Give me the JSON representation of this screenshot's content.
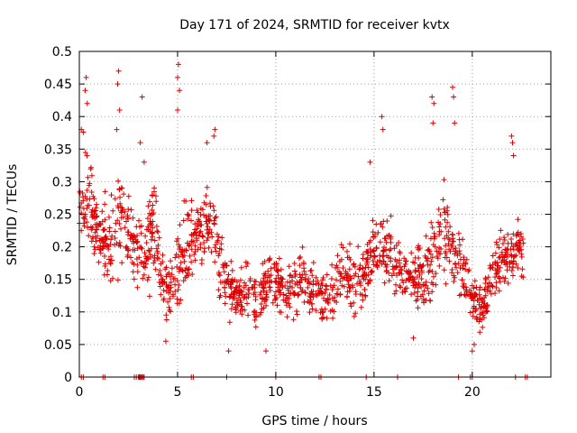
{
  "chart_data": {
    "type": "scatter",
    "title": "Day 171 of 2024, SRMTID for receiver kvtx",
    "xlabel": "GPS time / hours",
    "ylabel": "SRMTID / TECUs",
    "xlim": [
      0,
      24
    ],
    "ylim": [
      0,
      0.5
    ],
    "x_ticks": [
      0,
      5,
      10,
      15,
      20
    ],
    "y_ticks": [
      0,
      0.05,
      0.1,
      0.15,
      0.2,
      0.25,
      0.3,
      0.35,
      0.4,
      0.45,
      0.5
    ],
    "x_tick_labels": [
      "0",
      "5",
      "10",
      "15",
      "20"
    ],
    "y_tick_labels": [
      "0",
      "0.05",
      "0.1",
      "0.15",
      "0.2",
      "0.25",
      "0.3",
      "0.35",
      "0.4",
      "0.45",
      "0.5"
    ],
    "grid": true,
    "marker": "+",
    "color": "#dd0000",
    "series": [
      {
        "name": "SRMTID",
        "envelope_x": [
          0,
          0.3,
          0.6,
          1.0,
          1.5,
          2.0,
          2.5,
          3.0,
          3.4,
          3.8,
          4.2,
          4.6,
          5.0,
          5.5,
          6.0,
          6.5,
          7.0,
          7.5,
          8.0,
          8.5,
          9.0,
          9.5,
          10.0,
          10.5,
          11.0,
          11.5,
          12.0,
          12.5,
          13.0,
          13.5,
          14.0,
          14.5,
          15.0,
          15.5,
          16.0,
          16.5,
          17.0,
          17.5,
          18.0,
          18.5,
          19.0,
          19.5,
          20.0,
          20.5,
          21.0,
          21.5,
          22.0,
          22.5
        ],
        "envelope_mid": [
          0.27,
          0.3,
          0.25,
          0.22,
          0.2,
          0.26,
          0.22,
          0.2,
          0.18,
          0.24,
          0.16,
          0.13,
          0.17,
          0.2,
          0.22,
          0.24,
          0.2,
          0.14,
          0.12,
          0.13,
          0.11,
          0.14,
          0.15,
          0.13,
          0.14,
          0.16,
          0.13,
          0.12,
          0.14,
          0.16,
          0.13,
          0.16,
          0.19,
          0.2,
          0.17,
          0.15,
          0.16,
          0.14,
          0.19,
          0.22,
          0.2,
          0.17,
          0.12,
          0.11,
          0.15,
          0.18,
          0.19,
          0.2
        ],
        "envelope_spread": [
          0.09,
          0.1,
          0.08,
          0.07,
          0.07,
          0.1,
          0.08,
          0.07,
          0.07,
          0.09,
          0.06,
          0.05,
          0.09,
          0.08,
          0.08,
          0.07,
          0.07,
          0.05,
          0.05,
          0.06,
          0.05,
          0.05,
          0.06,
          0.05,
          0.06,
          0.06,
          0.05,
          0.05,
          0.05,
          0.06,
          0.05,
          0.07,
          0.07,
          0.08,
          0.06,
          0.05,
          0.06,
          0.06,
          0.08,
          0.1,
          0.08,
          0.07,
          0.05,
          0.05,
          0.06,
          0.06,
          0.06,
          0.05
        ],
        "end_hour": 22.6,
        "point_count": 1500,
        "spikes": [
          {
            "x": 0.35,
            "y": 0.46
          },
          {
            "x": 0.3,
            "y": 0.44
          },
          {
            "x": 0.4,
            "y": 0.42
          },
          {
            "x": 0.1,
            "y": 0.38
          },
          {
            "x": 2.0,
            "y": 0.47
          },
          {
            "x": 1.95,
            "y": 0.45
          },
          {
            "x": 2.05,
            "y": 0.41
          },
          {
            "x": 1.9,
            "y": 0.38
          },
          {
            "x": 3.2,
            "y": 0.43
          },
          {
            "x": 3.1,
            "y": 0.36
          },
          {
            "x": 3.3,
            "y": 0.33
          },
          {
            "x": 5.05,
            "y": 0.48
          },
          {
            "x": 5.0,
            "y": 0.46
          },
          {
            "x": 5.1,
            "y": 0.44
          },
          {
            "x": 5.0,
            "y": 0.41
          },
          {
            "x": 6.5,
            "y": 0.36
          },
          {
            "x": 6.9,
            "y": 0.38
          },
          {
            "x": 6.85,
            "y": 0.37
          },
          {
            "x": 15.4,
            "y": 0.4
          },
          {
            "x": 15.45,
            "y": 0.38
          },
          {
            "x": 14.8,
            "y": 0.33
          },
          {
            "x": 17.95,
            "y": 0.43
          },
          {
            "x": 18.05,
            "y": 0.42
          },
          {
            "x": 18.0,
            "y": 0.39
          },
          {
            "x": 19.0,
            "y": 0.445
          },
          {
            "x": 19.05,
            "y": 0.43
          },
          {
            "x": 19.1,
            "y": 0.39
          },
          {
            "x": 22.0,
            "y": 0.37
          },
          {
            "x": 22.05,
            "y": 0.36
          },
          {
            "x": 22.1,
            "y": 0.34
          },
          {
            "x": 20.0,
            "y": 0.04
          },
          {
            "x": 20.1,
            "y": 0.05
          },
          {
            "x": 9.5,
            "y": 0.04
          },
          {
            "x": 7.6,
            "y": 0.04
          },
          {
            "x": 4.4,
            "y": 0.055
          },
          {
            "x": 17.0,
            "y": 0.06
          }
        ]
      },
      {
        "name": "zero-level",
        "y": 0,
        "x": [
          0.1,
          0.2,
          1.2,
          1.3,
          2.8,
          2.9,
          3.0,
          3.05,
          3.1,
          3.15,
          3.2,
          3.25,
          3.3,
          5.7,
          5.8,
          7.5,
          10.0,
          12.2,
          12.3,
          14.6,
          16.2,
          19.3,
          19.9,
          20.0,
          22.2,
          22.7,
          22.8
        ]
      }
    ]
  }
}
